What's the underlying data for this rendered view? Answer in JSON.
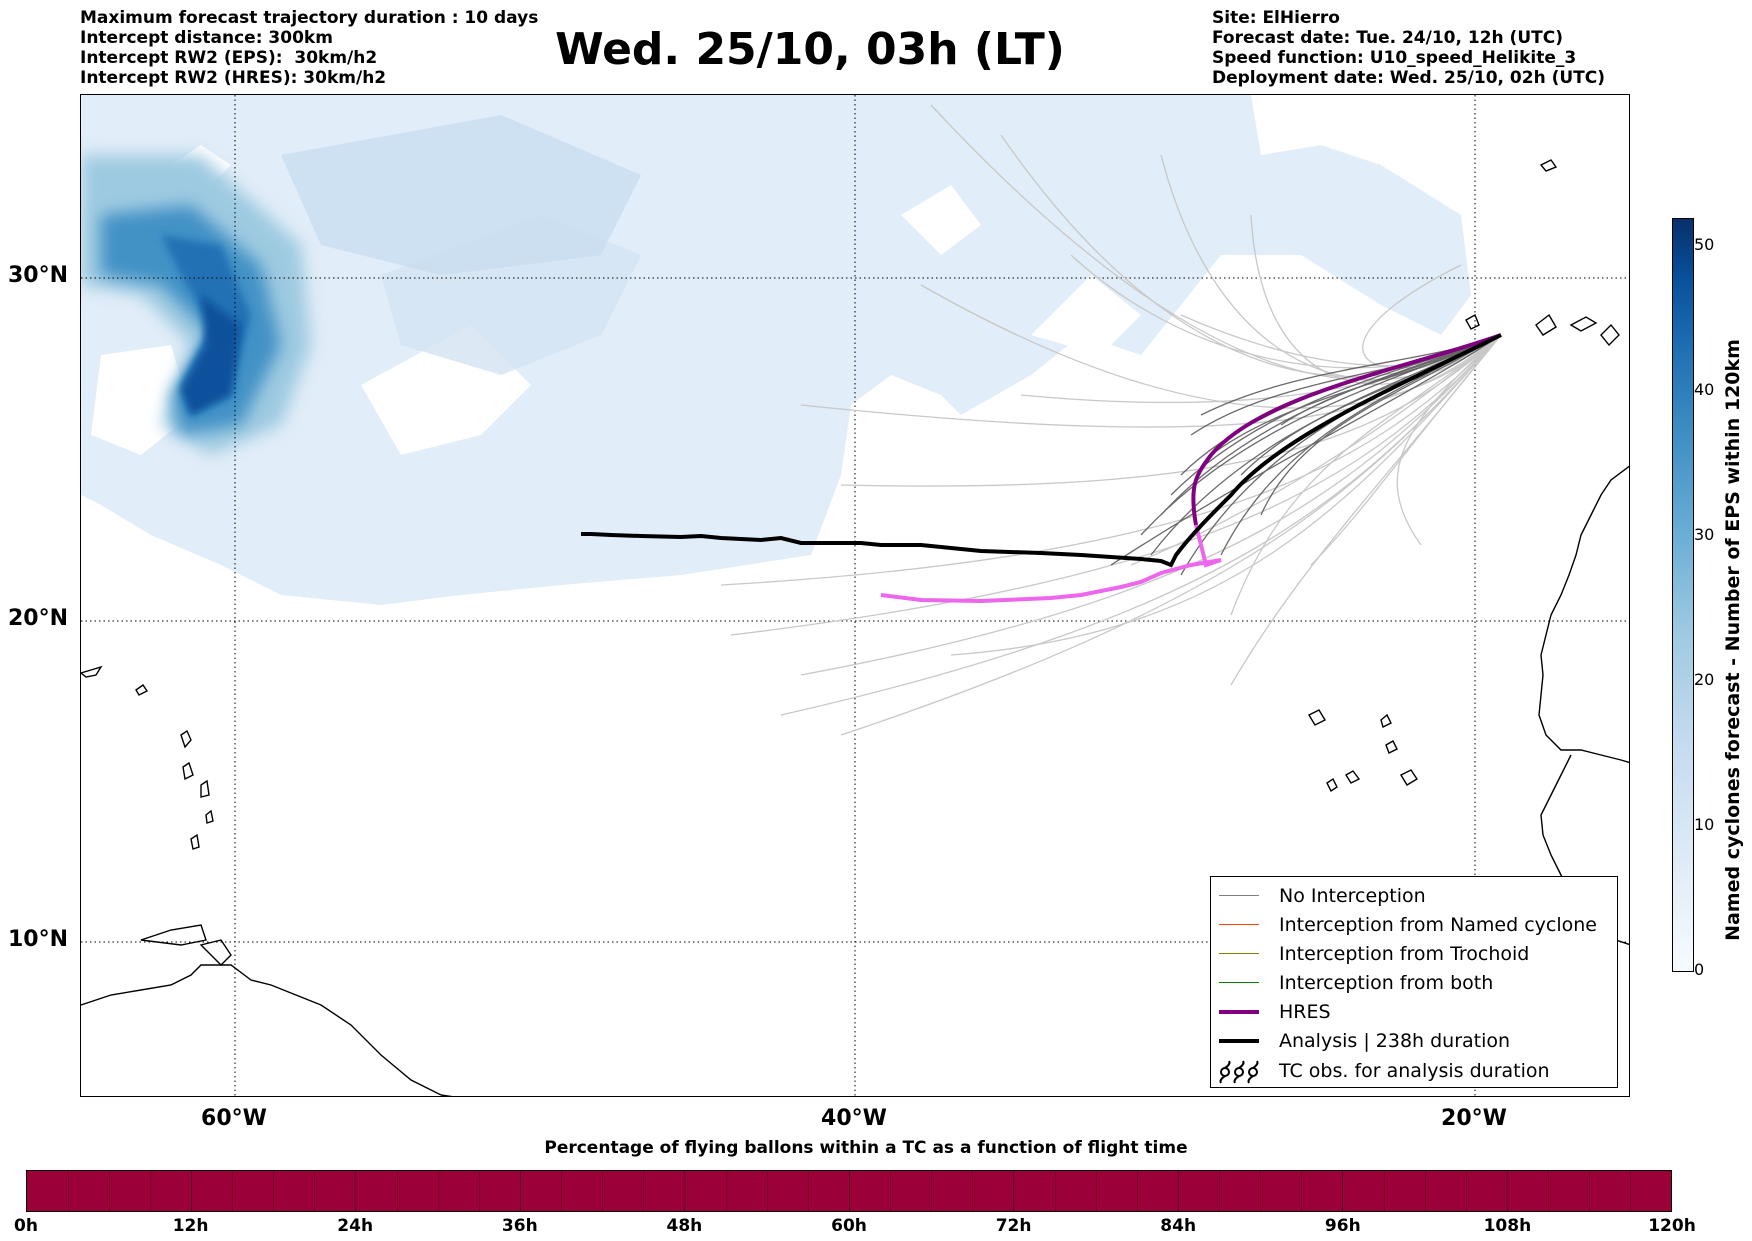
{
  "header": {
    "left_lines": [
      "Maximum forecast trajectory duration : 10 days",
      "Intercept distance: 300km",
      "Intercept RW2 (EPS):  30km/h2",
      "Intercept RW2 (HRES): 30km/h2"
    ],
    "right_lines": [
      "Site: ElHierro",
      "Forecast date: Tue. 24/10, 12h (UTC)",
      "Speed function: U10_speed_Helikite_3",
      "Deployment date: Wed. 25/10, 02h (UTC)"
    ],
    "title": "Wed. 25/10, 03h (LT)"
  },
  "map": {
    "latitude_labels": [
      "30°N",
      "20°N",
      "10°N"
    ],
    "longitude_labels": [
      "60°W",
      "40°W",
      "20°W"
    ],
    "extent": {
      "lon_min": -65,
      "lon_max": -15,
      "lat_min": 4.7,
      "lat_max": 35.3
    },
    "gridlines": "dotted",
    "colors": {
      "ensemble_tracks": "#c8c8c8",
      "ensemble_core": "#5a5a5a",
      "hres": "#800080",
      "hres_tail": "#ee66ee",
      "analysis": "#000000"
    }
  },
  "legend": {
    "position": "lower-right",
    "items": [
      {
        "label": "No Interception",
        "color": "#7f7f7f",
        "style": "thin"
      },
      {
        "label": "Interception from Named cyclone",
        "color": "#ff4500",
        "style": "thin"
      },
      {
        "label": "Interception from Trochoid",
        "color": "#808000",
        "style": "thin"
      },
      {
        "label": "Interception from both",
        "color": "#008000",
        "style": "thin"
      },
      {
        "label": "HRES",
        "color": "#800080",
        "style": "thick"
      },
      {
        "label": "Analysis | 238h duration",
        "color": "#000000",
        "style": "thick"
      },
      {
        "label": "TC obs. for analysis duration",
        "color": "#000000",
        "style": "symbol",
        "icon": "tropical-cyclone-symbol"
      }
    ]
  },
  "colorbar": {
    "title": "Named cyclones forecast - Number of EPS within 120km",
    "ticks": [
      "0",
      "10",
      "20",
      "30",
      "40",
      "50"
    ],
    "range": [
      0,
      52
    ],
    "colormap": "Blues"
  },
  "progress_bar": {
    "title": "Percentage of flying ballons within a TC as a function of flight time",
    "ticks": [
      "0h",
      "12h",
      "24h",
      "36h",
      "48h",
      "60h",
      "72h",
      "84h",
      "96h",
      "108h",
      "120h"
    ],
    "fill_color": "#9b0039",
    "percent_values": [
      100,
      100,
      100,
      100,
      100,
      100,
      100,
      100,
      100,
      100
    ]
  }
}
